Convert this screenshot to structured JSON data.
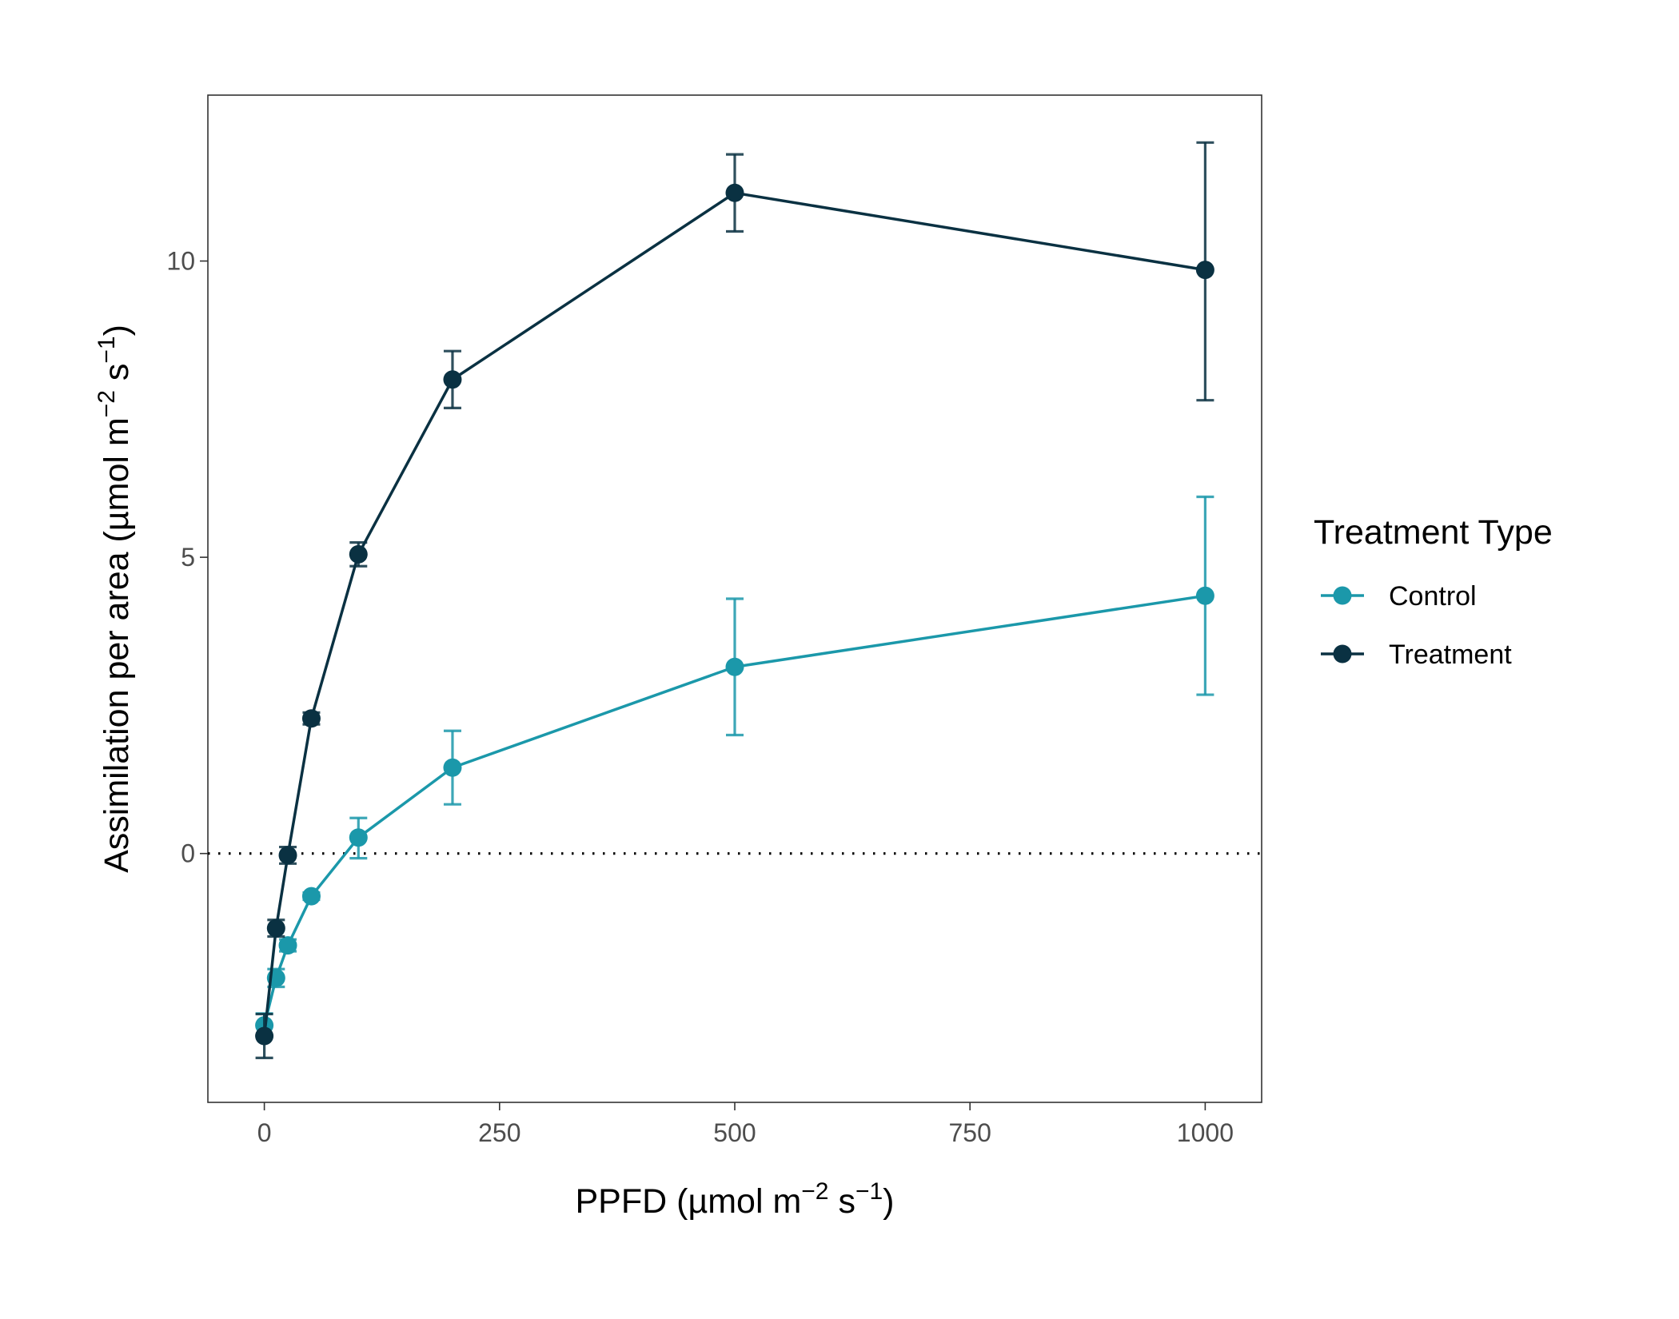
{
  "chart_data": {
    "type": "line",
    "xlabel": {
      "prefix": "PPFD (µmol m",
      "sup1": "−2",
      "middle": " s",
      "sup2": "−1",
      "suffix": ")"
    },
    "ylabel": {
      "prefix": "Assimilation per area (µmol m",
      "sup1": "−2",
      "middle": " s",
      "sup2": "−1",
      "suffix": ")"
    },
    "xlim": [
      -60,
      1060
    ],
    "ylim": [
      -4.2,
      12.8
    ],
    "x_ticks": [
      0,
      250,
      500,
      750,
      1000
    ],
    "x_tick_labels": [
      "0",
      "250",
      "500",
      "750",
      "1000"
    ],
    "y_ticks": [
      0,
      5,
      10
    ],
    "y_tick_labels": [
      "0",
      "5",
      "10"
    ],
    "reference_line": {
      "y": 0,
      "style": "dotted",
      "color": "#000000"
    },
    "grid": false,
    "legend": {
      "title": "Treatment Type",
      "position": "right"
    },
    "series": [
      {
        "name": "Control",
        "color": "#1B98AA",
        "points": [
          {
            "x": 0,
            "y": -2.9,
            "lo": -3.1,
            "hi": -2.7
          },
          {
            "x": 12.5,
            "y": -2.1,
            "lo": -2.25,
            "hi": -1.95
          },
          {
            "x": 25,
            "y": -1.55,
            "lo": -1.65,
            "hi": -1.45
          },
          {
            "x": 50,
            "y": -0.72,
            "lo": -0.78,
            "hi": -0.66
          },
          {
            "x": 100,
            "y": 0.27,
            "lo": -0.08,
            "hi": 0.6
          },
          {
            "x": 200,
            "y": 1.45,
            "lo": 0.83,
            "hi": 2.07
          },
          {
            "x": 500,
            "y": 3.15,
            "lo": 2.0,
            "hi": 4.3
          },
          {
            "x": 1000,
            "y": 4.35,
            "lo": 2.68,
            "hi": 6.02
          }
        ]
      },
      {
        "name": "Treatment",
        "color": "#0A3142",
        "points": [
          {
            "x": 0,
            "y": -3.08,
            "lo": -3.45,
            "hi": -2.71
          },
          {
            "x": 12.5,
            "y": -1.26,
            "lo": -1.4,
            "hi": -1.12
          },
          {
            "x": 25,
            "y": -0.03,
            "lo": -0.17,
            "hi": 0.11
          },
          {
            "x": 50,
            "y": 2.28,
            "lo": 2.18,
            "hi": 2.38
          },
          {
            "x": 100,
            "y": 5.05,
            "lo": 4.85,
            "hi": 5.25
          },
          {
            "x": 200,
            "y": 8.0,
            "lo": 7.52,
            "hi": 8.48
          },
          {
            "x": 500,
            "y": 11.15,
            "lo": 10.5,
            "hi": 11.8
          },
          {
            "x": 1000,
            "y": 9.85,
            "lo": 7.65,
            "hi": 12.0
          }
        ]
      }
    ]
  }
}
